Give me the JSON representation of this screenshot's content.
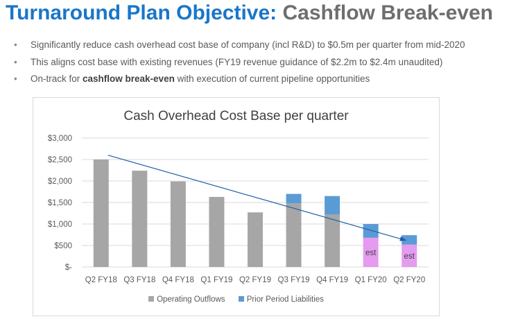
{
  "slide": {
    "title_part1": "Turnaround Plan Objective:",
    "title_part2": "Cashflow Break-even",
    "bullets": [
      {
        "pre": "Significantly reduce cash overhead cost base of company (incl R&D) to $0.5m per quarter from mid-2020",
        "bold": "",
        "post": ""
      },
      {
        "pre": "This aligns cost base with existing revenues (FY19 revenue guidance of $2.2m to $2.4m unaudited)",
        "bold": "",
        "post": ""
      },
      {
        "pre": "On-track for ",
        "bold": "cashflow break-even",
        "post": " with execution of current pipeline opportunities"
      }
    ]
  },
  "chart_data": {
    "type": "bar",
    "stacked": true,
    "title": "Cash Overhead Cost Base per quarter",
    "categories": [
      "Q2 FY18",
      "Q3 FY18",
      "Q4 FY18",
      "Q1 FY19",
      "Q2 FY19",
      "Q3 FY19",
      "Q4 FY19",
      "Q1 FY20",
      "Q2 FY20"
    ],
    "series": [
      {
        "name": "Operating Outflows",
        "values": [
          2500,
          2240,
          1990,
          1630,
          1270,
          1480,
          1220,
          680,
          520
        ],
        "color": "#a6a6a6",
        "est_color": "#e59bf0"
      },
      {
        "name": "Prior Period Liabilities",
        "values": [
          0,
          0,
          0,
          0,
          0,
          220,
          430,
          320,
          220
        ],
        "color": "#5b9bd5"
      }
    ],
    "estimate_label": "est",
    "estimates": [
      false,
      false,
      false,
      false,
      false,
      false,
      false,
      true,
      true
    ],
    "y_ticks": [
      0,
      500,
      1000,
      1500,
      2000,
      2500,
      3000
    ],
    "y_tick_labels": [
      "$-",
      "$500",
      "$1,000",
      "$1,500",
      "$2,000",
      "$2,500",
      "$3,000"
    ],
    "ylim": [
      0,
      3000
    ],
    "trendline": {
      "from": [
        0,
        2600
      ],
      "to": [
        8,
        620
      ],
      "color": "#1f5fa8"
    },
    "grid": true,
    "legend_position": "bottom"
  }
}
